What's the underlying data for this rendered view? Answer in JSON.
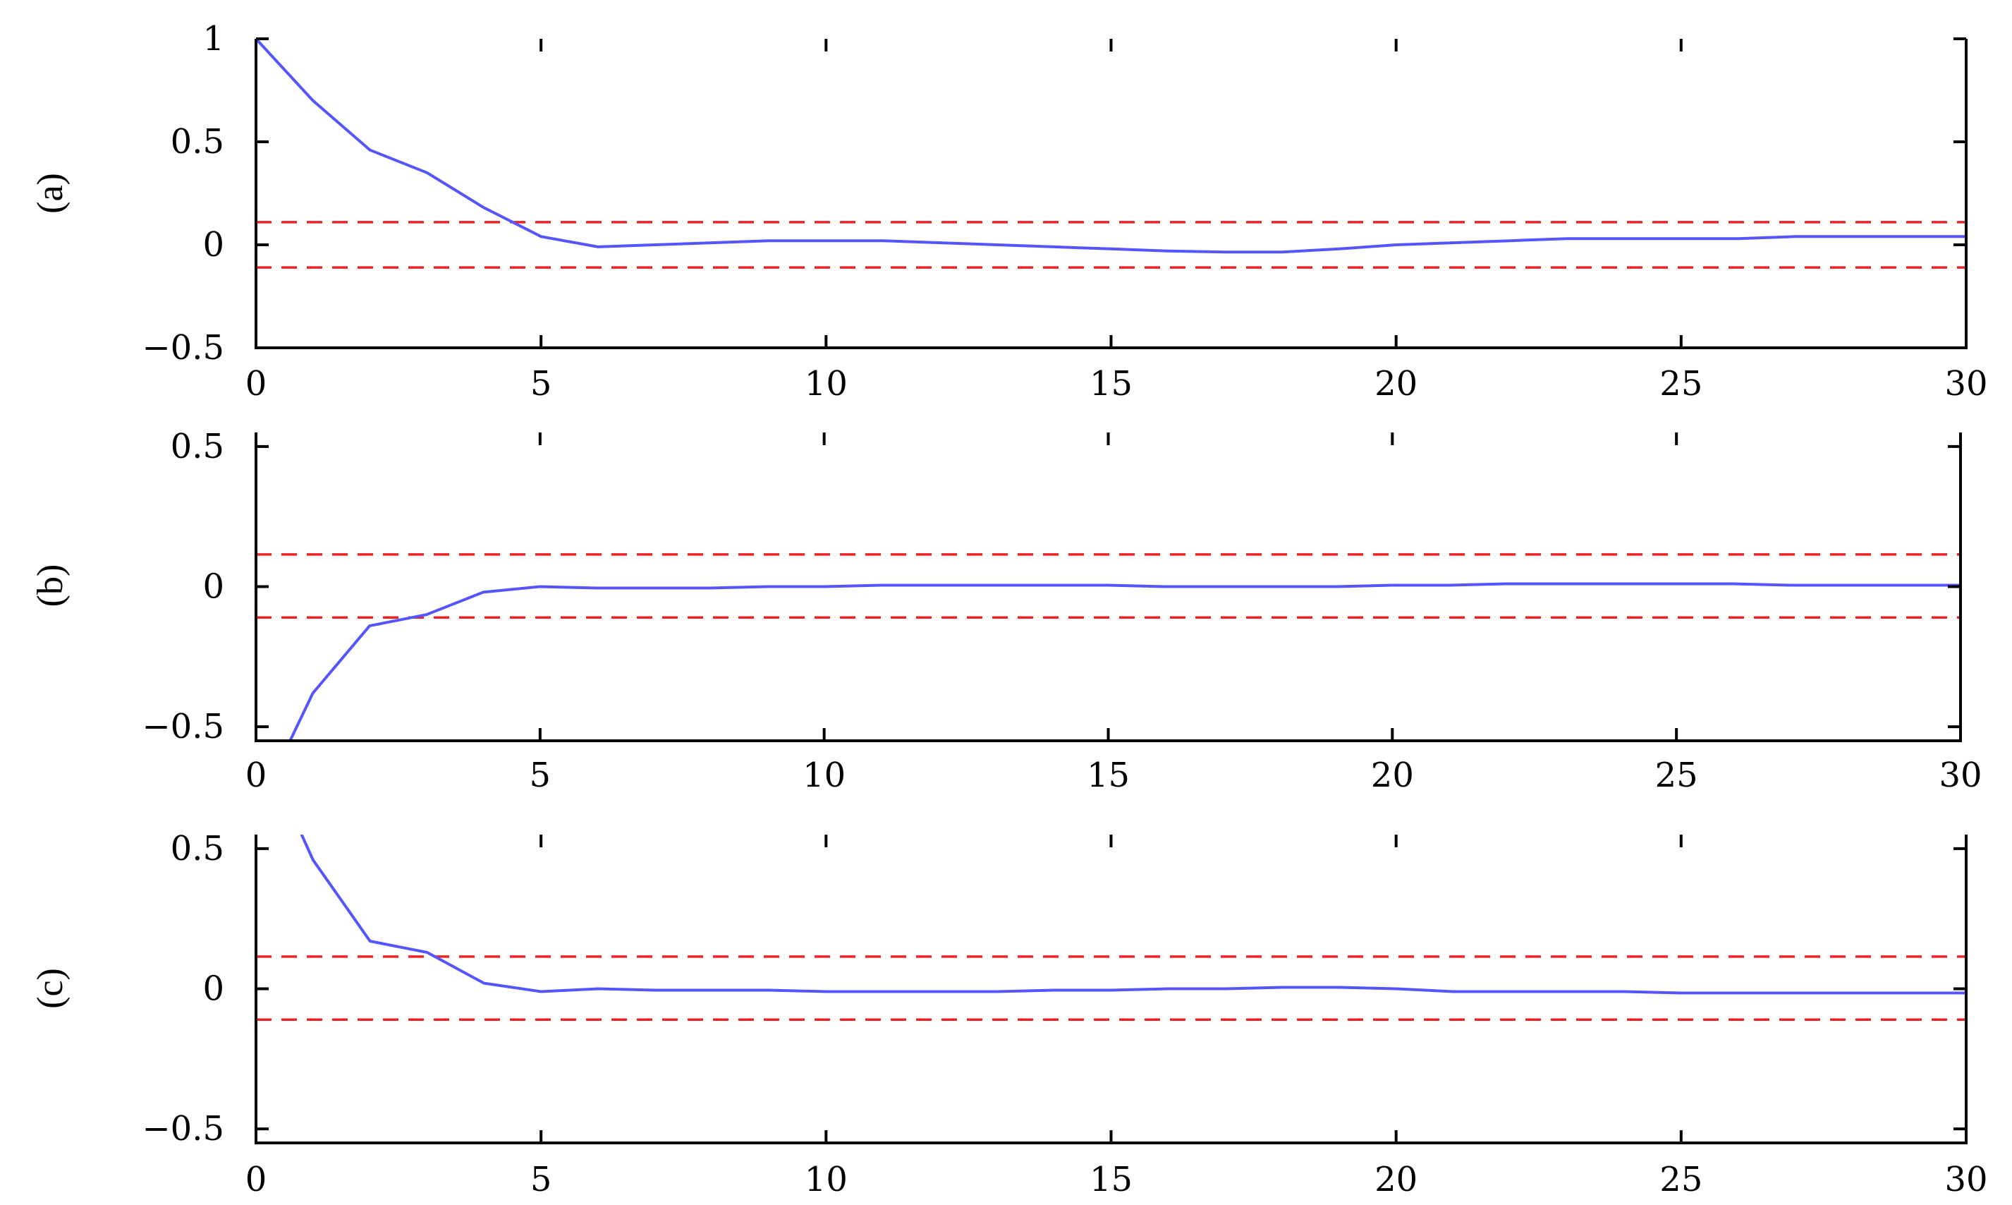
{
  "colors": {
    "series": "#5555ff",
    "bounds": "#ee2222",
    "axes": "#000000"
  },
  "chart_data": [
    {
      "type": "line",
      "panel_label": "(a)",
      "xlim": [
        0,
        30
      ],
      "ylim": [
        -0.5,
        1
      ],
      "xticks": [
        0,
        5,
        10,
        15,
        20,
        25,
        30
      ],
      "yticks": [
        -0.5,
        0,
        0.5,
        1
      ],
      "xtick_labels": [
        "0",
        "5",
        "10",
        "15",
        "20",
        "25",
        "30"
      ],
      "ytick_labels": [
        "−0.5",
        "0",
        "0.5",
        "1"
      ],
      "series": [
        {
          "x": [
            0,
            1,
            2,
            3,
            4,
            5,
            6,
            7,
            8,
            9,
            10,
            11,
            12,
            13,
            14,
            15,
            16,
            17,
            18,
            19,
            20,
            21,
            22,
            23,
            24,
            25,
            26,
            27,
            28,
            29,
            30
          ],
          "values": [
            1.0,
            0.7,
            0.46,
            0.35,
            0.18,
            0.04,
            -0.01,
            0.0,
            0.01,
            0.02,
            0.02,
            0.02,
            0.01,
            0.0,
            -0.01,
            -0.02,
            -0.03,
            -0.035,
            -0.035,
            -0.02,
            0.0,
            0.01,
            0.02,
            0.03,
            0.03,
            0.03,
            0.03,
            0.04,
            0.04,
            0.04,
            0.04
          ]
        }
      ],
      "bounds": [
        0.11,
        -0.11
      ]
    },
    {
      "type": "line",
      "panel_label": "(b)",
      "xlim": [
        0,
        30
      ],
      "ylim": [
        -0.55,
        0.55
      ],
      "xticks": [
        0,
        5,
        10,
        15,
        20,
        25,
        30
      ],
      "yticks": [
        -0.5,
        0,
        0.5
      ],
      "xtick_labels": [
        "0",
        "5",
        "10",
        "15",
        "20",
        "25",
        "30"
      ],
      "ytick_labels": [
        "−0.5",
        "0",
        "0.5"
      ],
      "series": [
        {
          "x": [
            0.6,
            1,
            2,
            3,
            4,
            5,
            6,
            7,
            8,
            9,
            10,
            11,
            12,
            13,
            14,
            15,
            16,
            17,
            18,
            19,
            20,
            21,
            22,
            23,
            24,
            25,
            26,
            27,
            28,
            29,
            30
          ],
          "values": [
            -0.55,
            -0.38,
            -0.14,
            -0.1,
            -0.02,
            0.0,
            -0.005,
            -0.005,
            -0.005,
            0.0,
            0.0,
            0.005,
            0.005,
            0.005,
            0.005,
            0.005,
            0.0,
            0.0,
            0.0,
            0.0,
            0.005,
            0.005,
            0.01,
            0.01,
            0.01,
            0.01,
            0.01,
            0.005,
            0.005,
            0.005,
            0.005
          ]
        }
      ],
      "bounds": [
        0.115,
        -0.11
      ]
    },
    {
      "type": "line",
      "panel_label": "(c)",
      "xlim": [
        0,
        30
      ],
      "ylim": [
        -0.55,
        0.55
      ],
      "xticks": [
        0,
        5,
        10,
        15,
        20,
        25,
        30
      ],
      "yticks": [
        -0.5,
        0,
        0.5
      ],
      "xtick_labels": [
        "0",
        "5",
        "10",
        "15",
        "20",
        "25",
        "30"
      ],
      "ytick_labels": [
        "−0.5",
        "0",
        "0.5"
      ],
      "series": [
        {
          "x": [
            0.8,
            1,
            2,
            3,
            4,
            5,
            6,
            7,
            8,
            9,
            10,
            11,
            12,
            13,
            14,
            15,
            16,
            17,
            18,
            19,
            20,
            21,
            22,
            23,
            24,
            25,
            26,
            27,
            28,
            29,
            30
          ],
          "values": [
            0.55,
            0.46,
            0.17,
            0.13,
            0.02,
            -0.01,
            0.0,
            -0.005,
            -0.005,
            -0.005,
            -0.01,
            -0.01,
            -0.01,
            -0.01,
            -0.005,
            -0.005,
            0.0,
            0.0,
            0.005,
            0.005,
            0.0,
            -0.01,
            -0.01,
            -0.01,
            -0.01,
            -0.015,
            -0.015,
            -0.015,
            -0.015,
            -0.015,
            -0.015
          ]
        }
      ],
      "bounds": [
        0.115,
        -0.11
      ]
    }
  ]
}
